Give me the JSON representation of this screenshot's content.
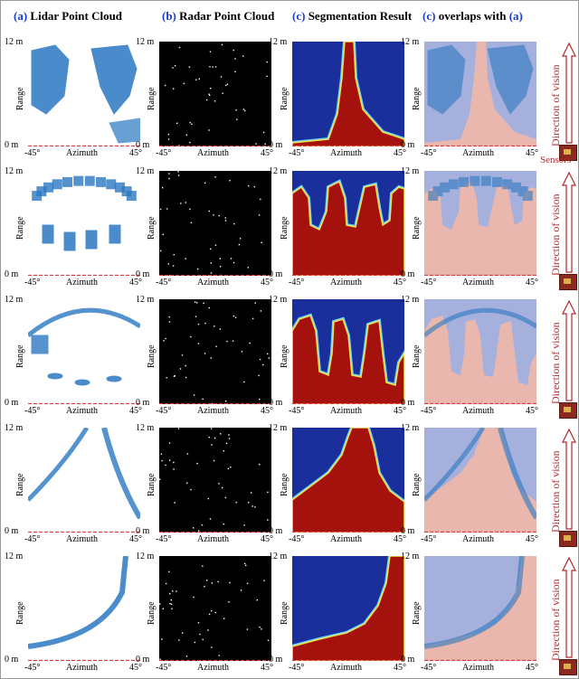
{
  "headers": [
    {
      "tag": "(a)",
      "text": "Lidar Point Cloud"
    },
    {
      "tag": "(b)",
      "text": "Radar Point Cloud"
    },
    {
      "tag": "(c)",
      "text": "Segmentation Result"
    },
    {
      "tag": "(c)",
      "text": "overlaps with",
      "tag2": "(a)"
    }
  ],
  "axis": {
    "y_top": "12 m",
    "y_bottom": "0 m",
    "y_label": "Range",
    "x_left": "-45°",
    "x_right": "45°",
    "x_label": "Azimuth"
  },
  "side": {
    "direction": "Direction of vision",
    "sensors": "Sensors"
  },
  "colors": {
    "lidar": "#2b78c2",
    "seg_free": "#a5120e",
    "seg_occupied": "#1a2f9c",
    "overlay_free": "#e9b7ad",
    "overlay_occupied": "#a6b0dd",
    "arrow": "#b3282b",
    "baseline": "#d93a3a"
  },
  "rows": 5
}
